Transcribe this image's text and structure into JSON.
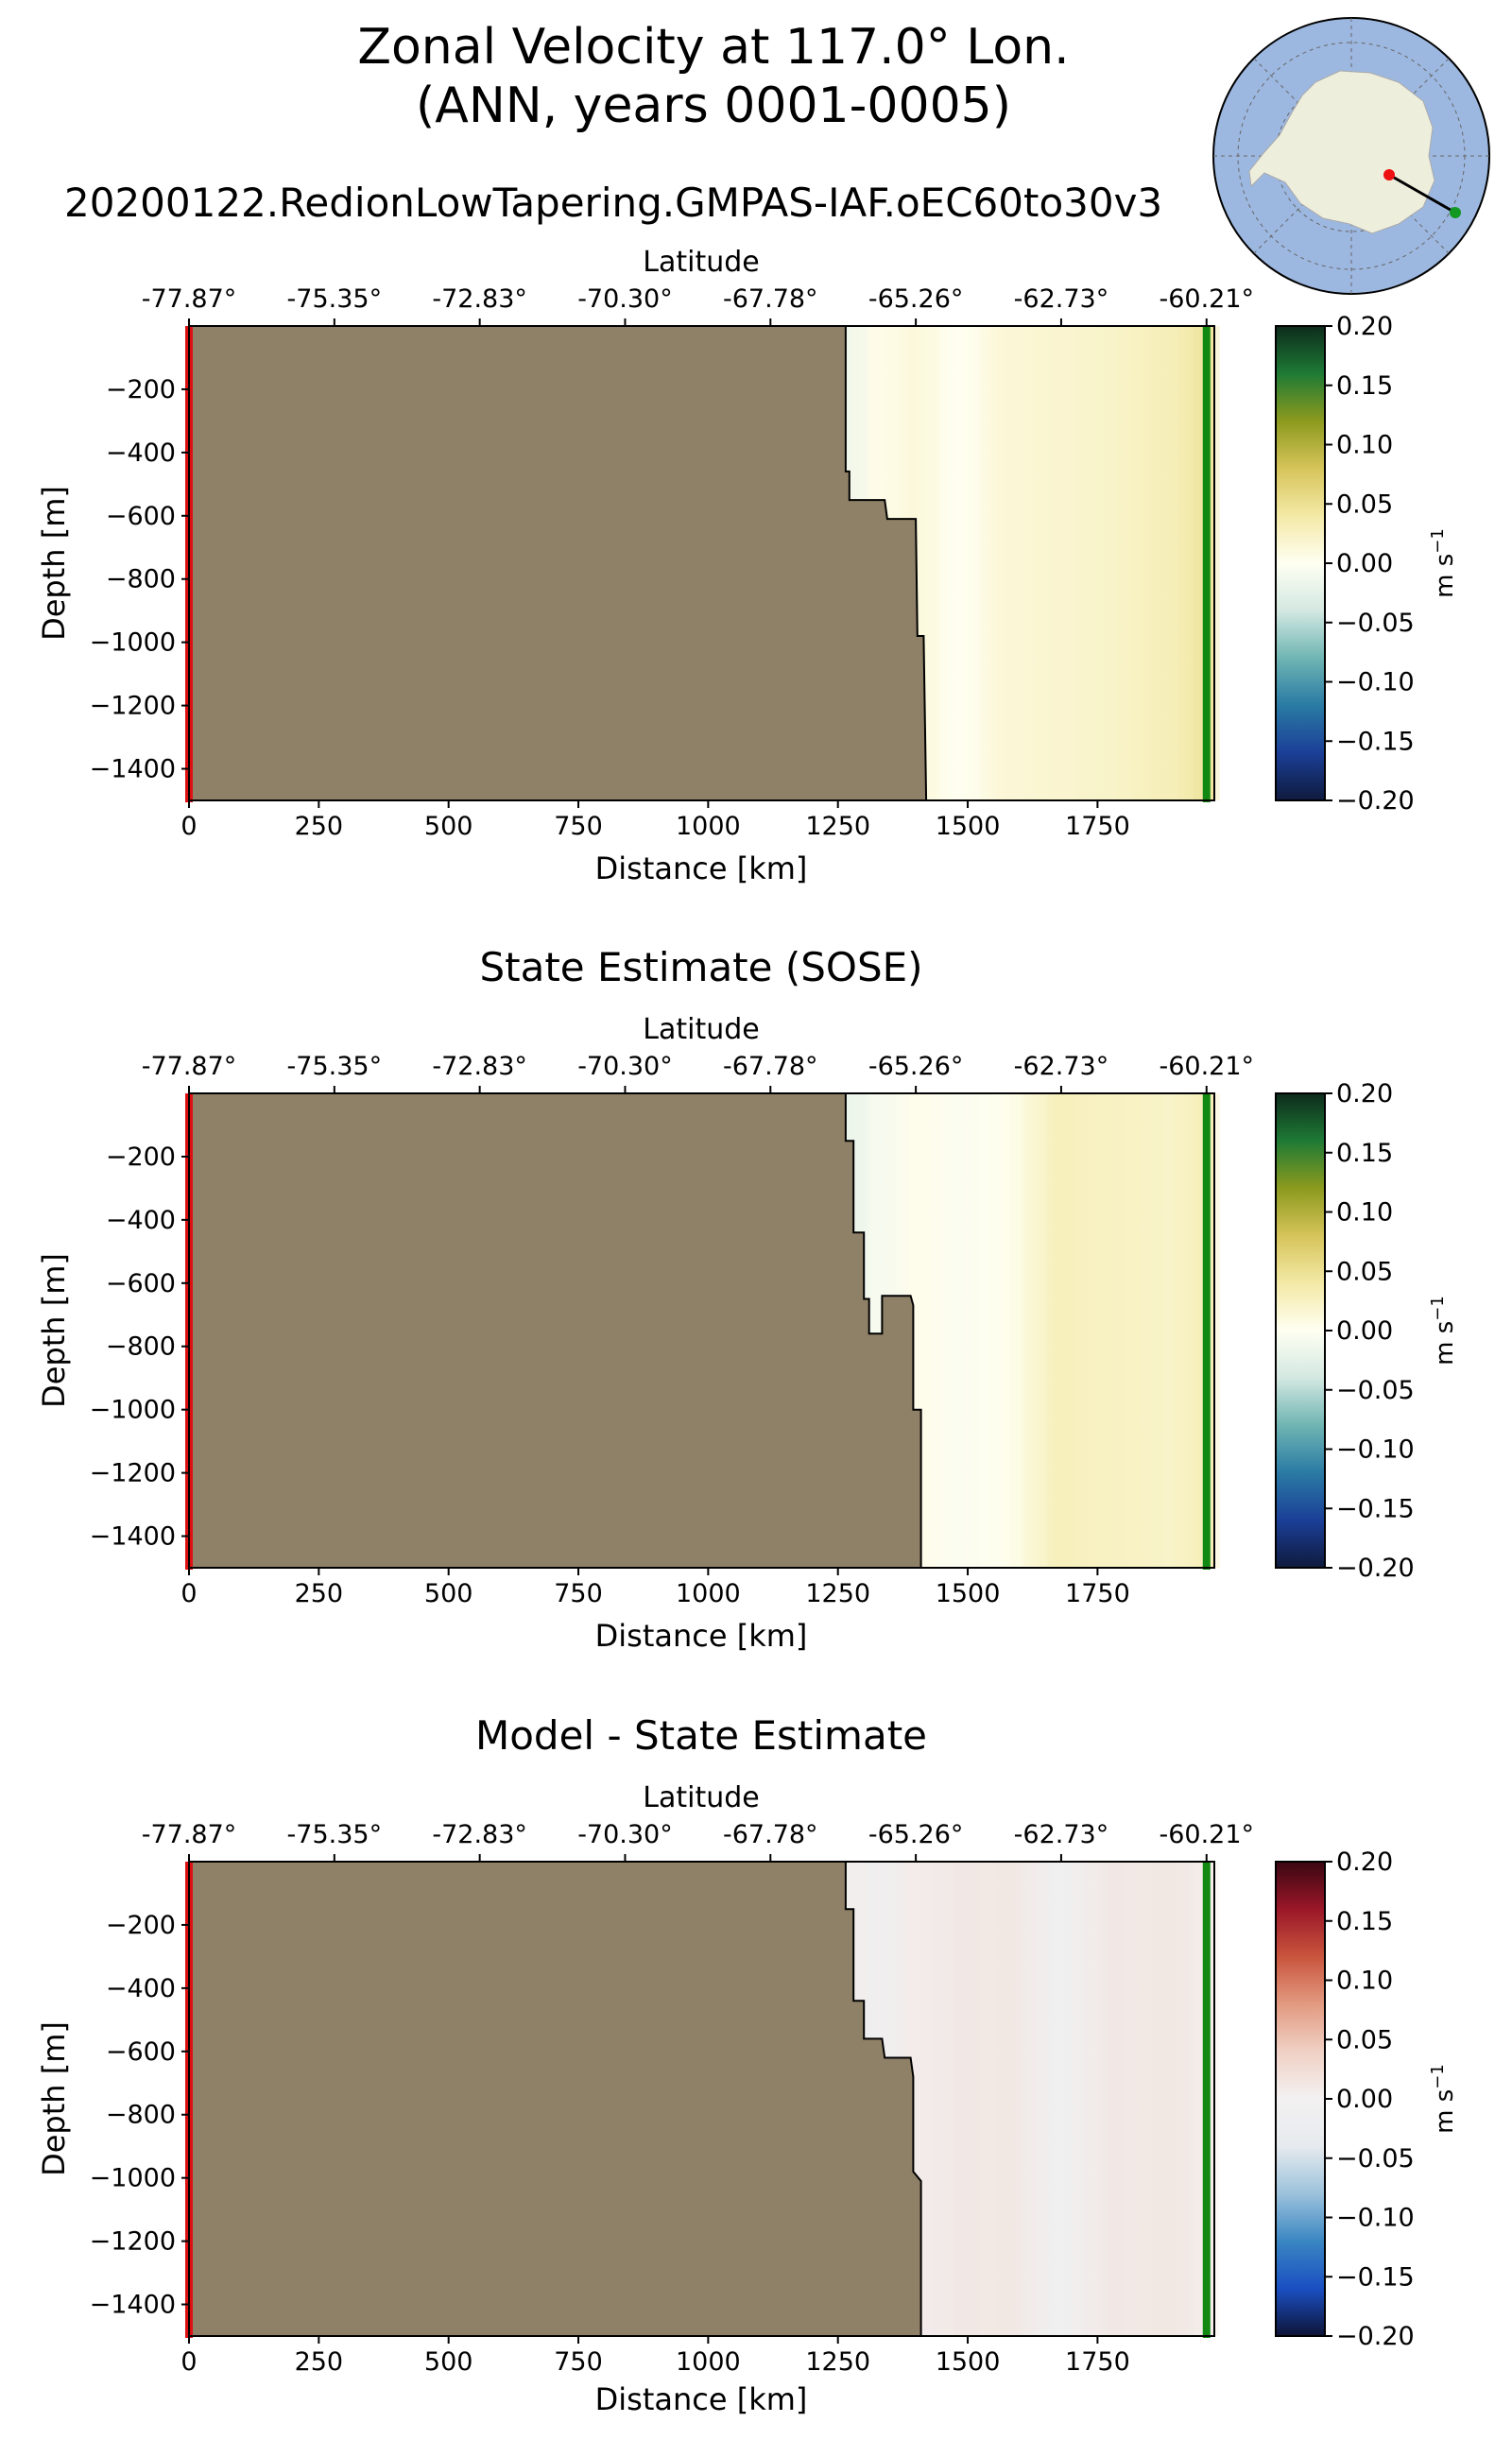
{
  "figure": {
    "title_line1": "Zonal Velocity at 117.0° Lon.",
    "title_line2": "(ANN, years 0001-0005)",
    "run_name": "20200122.RedionLowTapering.GMPAS-IAF.oEC60to30v3"
  },
  "inset_map": {
    "region": "Antarctica south polar view",
    "colors": {
      "ocean": "#9db8e0",
      "land": "#eeeedd",
      "start_dot": "#ee1111",
      "end_dot": "#119922",
      "line": "#000000"
    }
  },
  "colors": {
    "land_mask": "#8f8167",
    "start_bar": "#dd1111",
    "end_bar": "#118811",
    "velocity_cmap": [
      "#0f1a3d",
      "#1b3f97",
      "#2a7aa4",
      "#6fb5b3",
      "#d3e8e1",
      "#fffff2",
      "#f3e9a6",
      "#d6c45a",
      "#8c9a1e",
      "#1e7a35",
      "#0d2b1c"
    ],
    "diff_cmap": [
      "#0e1437",
      "#1a4fc2",
      "#3a86c2",
      "#9cc2dc",
      "#e6eaee",
      "#f3f1f1",
      "#f0d0c4",
      "#e29a80",
      "#c9543d",
      "#9a1728",
      "#3a0612"
    ]
  },
  "chart_data": [
    {
      "type": "heatmap",
      "title": "",
      "xlabel": "Distance [km]",
      "ylabel": "Depth [m]",
      "x_ticks": [
        0,
        250,
        500,
        750,
        1000,
        1250,
        1500,
        1750
      ],
      "x_tick_labels": [
        "0",
        "250",
        "500",
        "750",
        "1000",
        "1250",
        "1500",
        "1750"
      ],
      "y_ticks": [
        -200,
        -400,
        -600,
        -800,
        -1000,
        -1200,
        -1400
      ],
      "y_tick_labels": [
        "−200",
        "−400",
        "−600",
        "−800",
        "−1000",
        "−1200",
        "−1400"
      ],
      "xlim": [
        0,
        1975
      ],
      "ylim": [
        -1500,
        0
      ],
      "top_axis_label": "Latitude",
      "top_ticks_km": [
        0,
        280,
        560,
        840,
        1120,
        1400,
        1680,
        1960
      ],
      "top_tick_labels": [
        "-77.87°",
        "-75.35°",
        "-72.83°",
        "-70.30°",
        "-67.78°",
        "-65.26°",
        "-62.73°",
        "-60.21°"
      ],
      "colorbar_label": "m s",
      "colorbar_label_sup": "−1",
      "colorbar_ticks": [
        0.2,
        0.15,
        0.1,
        0.05,
        0.0,
        -0.05,
        -0.1,
        -0.15,
        -0.2
      ],
      "colorbar_tick_labels": [
        "0.20",
        "0.15",
        "0.10",
        "0.05",
        "0.00",
        "−0.05",
        "−0.10",
        "−0.15",
        "−0.20"
      ],
      "clim": [
        -0.2,
        0.2
      ],
      "colormap": "velocity",
      "land_boundary": [
        [
          1265,
          0
        ],
        [
          1265,
          -460
        ],
        [
          1272,
          -460
        ],
        [
          1272,
          -550
        ],
        [
          1340,
          -550
        ],
        [
          1345,
          -610
        ],
        [
          1400,
          -610
        ],
        [
          1403,
          -980
        ],
        [
          1415,
          -980
        ],
        [
          1420,
          -1500
        ]
      ],
      "field_columns_km": [
        1280,
        1350,
        1420,
        1500,
        1580,
        1680,
        1780,
        1880,
        1960
      ],
      "field_columns_value": [
        -0.015,
        0.005,
        0.012,
        0.0,
        0.014,
        0.018,
        0.022,
        0.03,
        0.045
      ]
    },
    {
      "type": "heatmap",
      "title": "State Estimate (SOSE)",
      "xlabel": "Distance [km]",
      "ylabel": "Depth [m]",
      "x_ticks": [
        0,
        250,
        500,
        750,
        1000,
        1250,
        1500,
        1750
      ],
      "x_tick_labels": [
        "0",
        "250",
        "500",
        "750",
        "1000",
        "1250",
        "1500",
        "1750"
      ],
      "y_ticks": [
        -200,
        -400,
        -600,
        -800,
        -1000,
        -1200,
        -1400
      ],
      "y_tick_labels": [
        "−200",
        "−400",
        "−600",
        "−800",
        "−1000",
        "−1200",
        "−1400"
      ],
      "xlim": [
        0,
        1975
      ],
      "ylim": [
        -1500,
        0
      ],
      "top_axis_label": "Latitude",
      "top_ticks_km": [
        0,
        280,
        560,
        840,
        1120,
        1400,
        1680,
        1960
      ],
      "top_tick_labels": [
        "-77.87°",
        "-75.35°",
        "-72.83°",
        "-70.30°",
        "-67.78°",
        "-65.26°",
        "-62.73°",
        "-60.21°"
      ],
      "colorbar_label": "m s",
      "colorbar_label_sup": "−1",
      "colorbar_ticks": [
        0.2,
        0.15,
        0.1,
        0.05,
        0.0,
        -0.05,
        -0.1,
        -0.15,
        -0.2
      ],
      "colorbar_tick_labels": [
        "0.20",
        "0.15",
        "0.10",
        "0.05",
        "0.00",
        "−0.05",
        "−0.10",
        "−0.15",
        "−0.20"
      ],
      "clim": [
        -0.2,
        0.2
      ],
      "colormap": "velocity",
      "land_boundary": [
        [
          1265,
          0
        ],
        [
          1265,
          -150
        ],
        [
          1280,
          -150
        ],
        [
          1280,
          -440
        ],
        [
          1300,
          -440
        ],
        [
          1300,
          -650
        ],
        [
          1310,
          -650
        ],
        [
          1310,
          -760
        ],
        [
          1335,
          -760
        ],
        [
          1335,
          -640
        ],
        [
          1390,
          -640
        ],
        [
          1395,
          -670
        ],
        [
          1395,
          -1000
        ],
        [
          1410,
          -1000
        ],
        [
          1410,
          -1500
        ]
      ],
      "field_columns_km": [
        1280,
        1350,
        1420,
        1500,
        1580,
        1680,
        1780,
        1880,
        1960
      ],
      "field_columns_value": [
        -0.02,
        -0.008,
        0.003,
        -0.004,
        0.002,
        0.028,
        0.025,
        0.022,
        0.03
      ]
    },
    {
      "type": "heatmap",
      "title": "Model - State Estimate",
      "xlabel": "Distance [km]",
      "ylabel": "Depth [m]",
      "x_ticks": [
        0,
        250,
        500,
        750,
        1000,
        1250,
        1500,
        1750
      ],
      "x_tick_labels": [
        "0",
        "250",
        "500",
        "750",
        "1000",
        "1250",
        "1500",
        "1750"
      ],
      "y_ticks": [
        -200,
        -400,
        -600,
        -800,
        -1000,
        -1200,
        -1400
      ],
      "y_tick_labels": [
        "−200",
        "−400",
        "−600",
        "−800",
        "−1000",
        "−1200",
        "−1400"
      ],
      "xlim": [
        0,
        1975
      ],
      "ylim": [
        -1500,
        0
      ],
      "top_axis_label": "Latitude",
      "top_ticks_km": [
        0,
        280,
        560,
        840,
        1120,
        1400,
        1680,
        1960
      ],
      "top_tick_labels": [
        "-77.87°",
        "-75.35°",
        "-72.83°",
        "-70.30°",
        "-67.78°",
        "-65.26°",
        "-62.73°",
        "-60.21°"
      ],
      "colorbar_label": "m s",
      "colorbar_label_sup": "−1",
      "colorbar_ticks": [
        0.2,
        0.15,
        0.1,
        0.05,
        0.0,
        -0.05,
        -0.1,
        -0.15,
        -0.2
      ],
      "colorbar_tick_labels": [
        "0.20",
        "0.15",
        "0.10",
        "0.05",
        "0.00",
        "−0.05",
        "−0.10",
        "−0.15",
        "−0.20"
      ],
      "clim": [
        -0.2,
        0.2
      ],
      "colormap": "diff",
      "land_boundary": [
        [
          1265,
          0
        ],
        [
          1265,
          -150
        ],
        [
          1280,
          -150
        ],
        [
          1280,
          -440
        ],
        [
          1300,
          -440
        ],
        [
          1300,
          -560
        ],
        [
          1335,
          -560
        ],
        [
          1340,
          -620
        ],
        [
          1390,
          -620
        ],
        [
          1395,
          -680
        ],
        [
          1395,
          -980
        ],
        [
          1410,
          -1010
        ],
        [
          1410,
          -1500
        ]
      ],
      "field_columns_km": [
        1280,
        1350,
        1420,
        1500,
        1580,
        1680,
        1780,
        1880,
        1960
      ],
      "field_columns_value": [
        0.005,
        -0.01,
        0.006,
        0.01,
        0.012,
        -0.008,
        0.01,
        0.012,
        0.005
      ]
    }
  ]
}
